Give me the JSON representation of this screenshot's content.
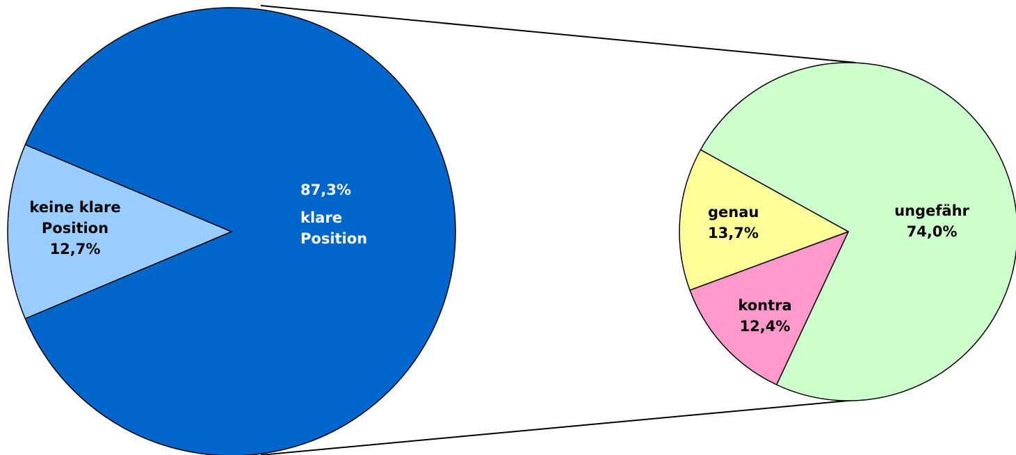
{
  "chart_data": [
    {
      "type": "pie",
      "categories": [
        "keine klare Position",
        "klare Position"
      ],
      "values": [
        12.7,
        87.3
      ],
      "value_labels": [
        "12,7%",
        "87,3%"
      ],
      "colors": [
        "#99ccff",
        "#0066cc"
      ]
    },
    {
      "type": "pie",
      "categories": [
        "genau",
        "kontra",
        "ungefähr"
      ],
      "values": [
        13.7,
        12.4,
        74.0
      ],
      "value_labels": [
        "13,7%",
        "12,4%",
        "74,0%"
      ],
      "colors": [
        "#ffff99",
        "#ff99cc",
        "#ccffcc"
      ]
    }
  ]
}
